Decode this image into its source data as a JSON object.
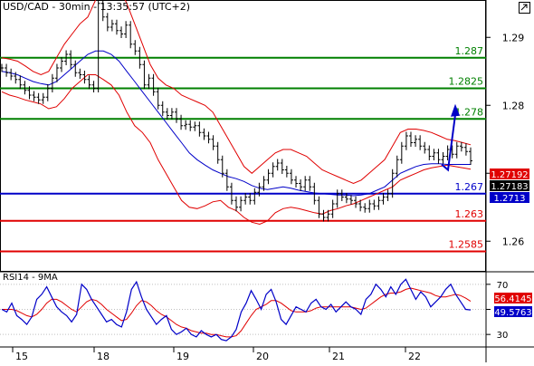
{
  "chart_data": [
    {
      "type": "line",
      "title": "USD/CAD - 30min - 13:35:57 (UTC+2)",
      "x_axis": {
        "tick_labels": [
          "15",
          "18",
          "19",
          "20",
          "21",
          "22"
        ]
      },
      "y_axis": {
        "ylim": [
          1.2555,
          1.2955
        ],
        "tick_labels": [
          "1.29",
          "1.28",
          "1.27",
          "1.26"
        ],
        "tick_values": [
          1.29,
          1.28,
          1.27,
          1.26
        ]
      },
      "grid": false,
      "levels": [
        {
          "label": "1.287",
          "value": 1.287,
          "color": "#008000"
        },
        {
          "label": "1.2825",
          "value": 1.2825,
          "color": "#008000"
        },
        {
          "label": "1.278",
          "value": 1.278,
          "color": "#008000"
        },
        {
          "label": "1.267",
          "value": 1.267,
          "color": "#0000c8"
        },
        {
          "label": "1.263",
          "value": 1.263,
          "color": "#e00000"
        },
        {
          "label": "1.2585",
          "value": 1.2585,
          "color": "#e00000"
        }
      ],
      "price_tags": [
        {
          "label": "1.27192",
          "value": 1.27192,
          "bg": "#e00000",
          "fg": "#ffffff"
        },
        {
          "label": "1.27183",
          "value": 1.27183,
          "bg": "#000000",
          "fg": "#ffffff"
        },
        {
          "label": "1.2713",
          "value": 1.2713,
          "bg": "#0000c8",
          "fg": "#ffffff"
        }
      ],
      "forecast_arrow": {
        "from": 1.2705,
        "to": 1.2802
      },
      "price_close": [
        1.2855,
        1.2848,
        1.2843,
        1.2838,
        1.283,
        1.2822,
        1.2815,
        1.2812,
        1.2808,
        1.2812,
        1.2825,
        1.284,
        1.2855,
        1.2865,
        1.2875,
        1.286,
        1.2848,
        1.2845,
        1.2838,
        1.283,
        1.2825,
        1.295,
        1.293,
        1.2915,
        1.292,
        1.291,
        1.2905,
        1.2918,
        1.289,
        1.288,
        1.286,
        1.283,
        1.284,
        1.282,
        1.28,
        1.279,
        1.2785,
        1.279,
        1.278,
        1.277,
        1.2772,
        1.2768,
        1.277,
        1.276,
        1.2755,
        1.275,
        1.274,
        1.272,
        1.27,
        1.268,
        1.266,
        1.265,
        1.266,
        1.2665,
        1.266,
        1.2672,
        1.268,
        1.269,
        1.27,
        1.271,
        1.2715,
        1.2705,
        1.27,
        1.269,
        1.2685,
        1.268,
        1.269,
        1.268,
        1.266,
        1.264,
        1.2635,
        1.264,
        1.2655,
        1.267,
        1.2665,
        1.2662,
        1.266,
        1.2655,
        1.265,
        1.2648,
        1.2655,
        1.2652,
        1.266,
        1.2665,
        1.267,
        1.27,
        1.272,
        1.274,
        1.2755,
        1.2745,
        1.275,
        1.274,
        1.2735,
        1.2725,
        1.273,
        1.272,
        1.2725,
        1.2735,
        1.2728,
        1.274,
        1.2738,
        1.2732,
        1.27183
      ],
      "bb_upper": [
        1.287,
        1.2868,
        1.2865,
        1.2858,
        1.285,
        1.2845,
        1.285,
        1.287,
        1.289,
        1.2905,
        1.292,
        1.293,
        1.2955,
        1.297,
        1.2975,
        1.2975,
        1.295,
        1.292,
        1.289,
        1.286,
        1.284,
        1.283,
        1.2825,
        1.2815,
        1.281,
        1.2805,
        1.28,
        1.279,
        1.277,
        1.275,
        1.273,
        1.271,
        1.27,
        1.271,
        1.272,
        1.273,
        1.2735,
        1.2735,
        1.273,
        1.2725,
        1.2715,
        1.2705,
        1.27,
        1.2695,
        1.269,
        1.2685,
        1.269,
        1.27,
        1.271,
        1.272,
        1.274,
        1.276,
        1.2765,
        1.2765,
        1.2763,
        1.276,
        1.2755,
        1.275,
        1.2748,
        1.2745,
        1.2742
      ],
      "bb_lower": [
        1.282,
        1.2815,
        1.2812,
        1.2808,
        1.2805,
        1.2802,
        1.2795,
        1.2798,
        1.281,
        1.2825,
        1.2835,
        1.2845,
        1.2845,
        1.2838,
        1.283,
        1.2815,
        1.279,
        1.277,
        1.276,
        1.2745,
        1.272,
        1.27,
        1.268,
        1.266,
        1.265,
        1.2648,
        1.2652,
        1.2658,
        1.266,
        1.265,
        1.2645,
        1.2635,
        1.2628,
        1.2625,
        1.263,
        1.2642,
        1.2648,
        1.265,
        1.2648,
        1.2645,
        1.2642,
        1.264,
        1.2645,
        1.2648,
        1.2652,
        1.2655,
        1.266,
        1.2665,
        1.267,
        1.2675,
        1.268,
        1.269,
        1.2695,
        1.27,
        1.2705,
        1.2708,
        1.271,
        1.2712,
        1.271,
        1.2708,
        1.2706
      ],
      "ma": [
        1.285,
        1.2848,
        1.2845,
        1.284,
        1.2835,
        1.2832,
        1.283,
        1.2835,
        1.2845,
        1.2855,
        1.2865,
        1.2875,
        1.288,
        1.288,
        1.2875,
        1.2865,
        1.285,
        1.2835,
        1.282,
        1.2805,
        1.279,
        1.2775,
        1.276,
        1.2745,
        1.273,
        1.272,
        1.2712,
        1.2705,
        1.27,
        1.2695,
        1.2692,
        1.2688,
        1.2682,
        1.2678,
        1.2676,
        1.2678,
        1.268,
        1.2678,
        1.2675,
        1.2673,
        1.2671,
        1.267,
        1.2669,
        1.2668,
        1.2668,
        1.2667,
        1.2668,
        1.267,
        1.2675,
        1.268,
        1.269,
        1.27,
        1.2705,
        1.271,
        1.2713,
        1.2714,
        1.2714,
        1.2713,
        1.2713,
        1.2713,
        1.2713
      ]
    },
    {
      "type": "line",
      "title": "RSI14 - 9MA",
      "y_axis": {
        "ylim": [
          20,
          80
        ],
        "tick_labels": [
          "70",
          "50",
          "30"
        ],
        "tick_values": [
          70,
          50,
          30
        ]
      },
      "price_tags": [
        {
          "label": "56.4145",
          "value": 56.4145,
          "bg": "#e00000",
          "fg": "#ffffff"
        },
        {
          "label": "49.5763",
          "value": 49.5763,
          "bg": "#0000c8",
          "fg": "#ffffff"
        }
      ],
      "rsi": [
        50,
        48,
        55,
        45,
        42,
        38,
        44,
        58,
        62,
        68,
        60,
        52,
        48,
        45,
        40,
        46,
        70,
        66,
        58,
        52,
        46,
        40,
        42,
        38,
        36,
        48,
        66,
        72,
        60,
        50,
        44,
        38,
        42,
        45,
        34,
        30,
        32,
        35,
        30,
        28,
        33,
        30,
        28,
        30,
        26,
        25,
        28,
        34,
        48,
        55,
        65,
        58,
        50,
        62,
        66,
        56,
        42,
        38,
        45,
        52,
        50,
        48,
        55,
        58,
        52,
        50,
        54,
        48,
        52,
        56,
        52,
        50,
        46,
        58,
        62,
        70,
        66,
        60,
        68,
        62,
        70,
        74,
        66,
        58,
        64,
        60,
        52,
        56,
        60,
        66,
        70,
        62,
        56,
        50,
        49.5763
      ],
      "rsi_ma": [
        50,
        50,
        50,
        49,
        47,
        45,
        44,
        46,
        50,
        55,
        58,
        58,
        56,
        53,
        50,
        48,
        52,
        56,
        58,
        57,
        54,
        50,
        47,
        44,
        41,
        42,
        47,
        53,
        57,
        56,
        53,
        49,
        46,
        44,
        41,
        38,
        36,
        35,
        33,
        32,
        31,
        31,
        30,
        30,
        29,
        28,
        28,
        29,
        33,
        39,
        45,
        50,
        52,
        54,
        57,
        57,
        55,
        52,
        49,
        48,
        48,
        48,
        49,
        51,
        52,
        52,
        52,
        52,
        52,
        52,
        52,
        51,
        50,
        51,
        54,
        57,
        60,
        62,
        63,
        63,
        64,
        66,
        67,
        66,
        65,
        64,
        63,
        61,
        60,
        60,
        61,
        62,
        61,
        59,
        56.4145
      ]
    }
  ]
}
